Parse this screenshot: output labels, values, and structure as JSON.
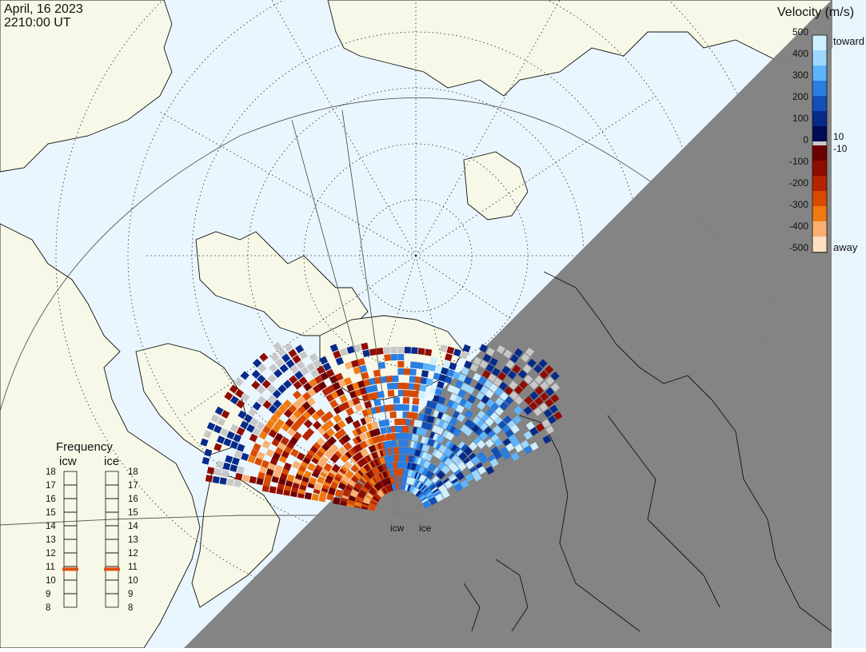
{
  "header": {
    "date": "April, 16 2023",
    "time": "2210:00 UT"
  },
  "colorbar": {
    "title": "Velocity (m/s)",
    "toward_label": "toward",
    "away_label": "away",
    "ticks": [
      "500",
      "400",
      "300",
      "200",
      "100",
      "10",
      "0",
      "-10",
      "-100",
      "-200",
      "-300",
      "-400",
      "-500"
    ],
    "colors_toward": [
      "#cfefff",
      "#9fd8ff",
      "#5cb4ff",
      "#2a7ee0",
      "#1250b8",
      "#062a8a",
      "#000a55"
    ],
    "colors_away": [
      "#6a0000",
      "#8f0c00",
      "#b52400",
      "#d94a00",
      "#f07a10",
      "#f9b070",
      "#fde0c0"
    ]
  },
  "frequency_panel": {
    "title": "Frequency",
    "radars": [
      {
        "name": "icw",
        "value_mhz": 10.8
      },
      {
        "name": "ice",
        "value_mhz": 10.8
      }
    ],
    "scale": [
      "18",
      "17",
      "16",
      "15",
      "14",
      "13",
      "12",
      "11",
      "10",
      "9",
      "8"
    ],
    "marker_color": "#e05010"
  },
  "sites": [
    {
      "name": "icw"
    },
    {
      "name": "ice"
    }
  ],
  "colors": {
    "land": "#f8f8e8",
    "ocean": "#eaf6fe",
    "night": "#808080",
    "ground_scatter": "#c8c8c8"
  }
}
